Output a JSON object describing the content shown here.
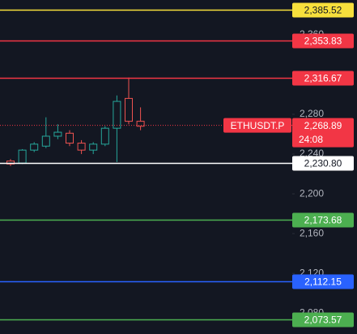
{
  "chart_data": {
    "type": "candlestick",
    "categories": [
      null,
      null,
      null,
      null,
      null,
      null,
      null,
      null,
      null,
      null,
      null,
      null
    ],
    "open": [
      2233,
      2231,
      2244,
      2248,
      2258,
      2261,
      2251,
      2244,
      2250,
      2266,
      2296,
      2273
    ],
    "high": [
      2235,
      2245,
      2252,
      2277,
      2270,
      2264,
      2254,
      2252,
      2268,
      2299,
      2317,
      2287
    ],
    "low": [
      2228,
      2230,
      2242,
      2246,
      2255,
      2248,
      2240,
      2240,
      2248,
      2232,
      2270,
      2264
    ],
    "close": [
      2230,
      2244,
      2250,
      2258,
      2262,
      2251,
      2244,
      2250,
      2266,
      2293,
      2273,
      2268
    ],
    "up_color": "#26a69a",
    "down_color": "#ef5350",
    "ylim": [
      2059,
      2395
    ],
    "yticks": [
      {
        "value": 2360,
        "label": "2,360"
      },
      {
        "value": 2280,
        "label": "2,280"
      },
      {
        "value": 2240,
        "label": "2,240"
      },
      {
        "value": 2200,
        "label": "2,200"
      },
      {
        "value": 2160,
        "label": "2,160"
      },
      {
        "value": 2120,
        "label": "2,120"
      },
      {
        "value": 2080,
        "label": "2,080"
      }
    ],
    "price_lines": [
      {
        "value": 2385.52,
        "label": "2,385.52",
        "color": "#f7e03c"
      },
      {
        "value": 2353.83,
        "label": "2,353.83",
        "color": "#f23645"
      },
      {
        "value": 2316.67,
        "label": "2,316.67",
        "color": "#f23645"
      },
      {
        "value": 2230.8,
        "label": "2,230.80",
        "color": "#ffffff"
      },
      {
        "value": 2173.68,
        "label": "2,173.68",
        "color": "#4caf50"
      },
      {
        "value": 2112.15,
        "label": "2,112.15",
        "color": "#2962ff"
      },
      {
        "value": 2073.57,
        "label": "2,073.57",
        "color": "#4caf50"
      }
    ],
    "last_price": {
      "symbol": "ETHUSDT.P",
      "value": 2268.89,
      "label": "2,268.89",
      "countdown": "24:08",
      "color": "#f23645"
    }
  }
}
